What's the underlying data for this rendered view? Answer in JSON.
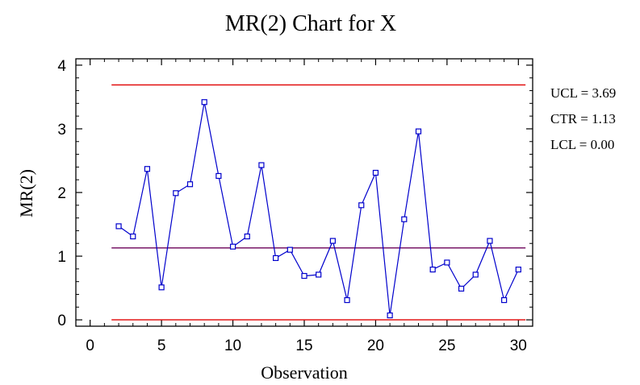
{
  "chart_data": {
    "type": "line",
    "title": "MR(2) Chart for X",
    "xlabel": "Observation",
    "ylabel": "MR(2)",
    "xlim": [
      -1,
      31
    ],
    "ylim": [
      -0.1,
      4.1
    ],
    "xticks": [
      0,
      5,
      10,
      15,
      20,
      25,
      30
    ],
    "yticks": [
      0,
      1,
      2,
      3,
      4
    ],
    "grid": false,
    "series": [
      {
        "x": [
          2,
          3,
          4,
          5,
          6,
          7,
          8,
          9,
          10,
          11,
          12,
          13,
          14,
          15,
          16,
          17,
          18,
          19,
          20,
          21,
          22,
          23,
          24,
          25,
          26,
          27,
          28,
          29,
          30
        ],
        "values": [
          1.47,
          1.31,
          2.37,
          0.51,
          1.99,
          2.13,
          3.42,
          2.26,
          1.15,
          1.31,
          2.43,
          0.97,
          1.1,
          0.69,
          0.71,
          1.24,
          0.31,
          1.8,
          2.31,
          0.07,
          1.58,
          2.96,
          0.79,
          0.9,
          0.49,
          0.71,
          1.24,
          0.31,
          0.79
        ],
        "color": "#0000cc",
        "marker": "square"
      }
    ],
    "control_limits": {
      "ucl": {
        "value": 3.69,
        "label": "UCL = 3.69",
        "color": "#e00000"
      },
      "ctr": {
        "value": 1.13,
        "label": "CTR = 1.13",
        "color": "#6b0058"
      },
      "lcl": {
        "value": 0.0,
        "label": "LCL = 0.00",
        "color": "#e00000"
      },
      "x_range": [
        1.5,
        30.5
      ]
    }
  }
}
